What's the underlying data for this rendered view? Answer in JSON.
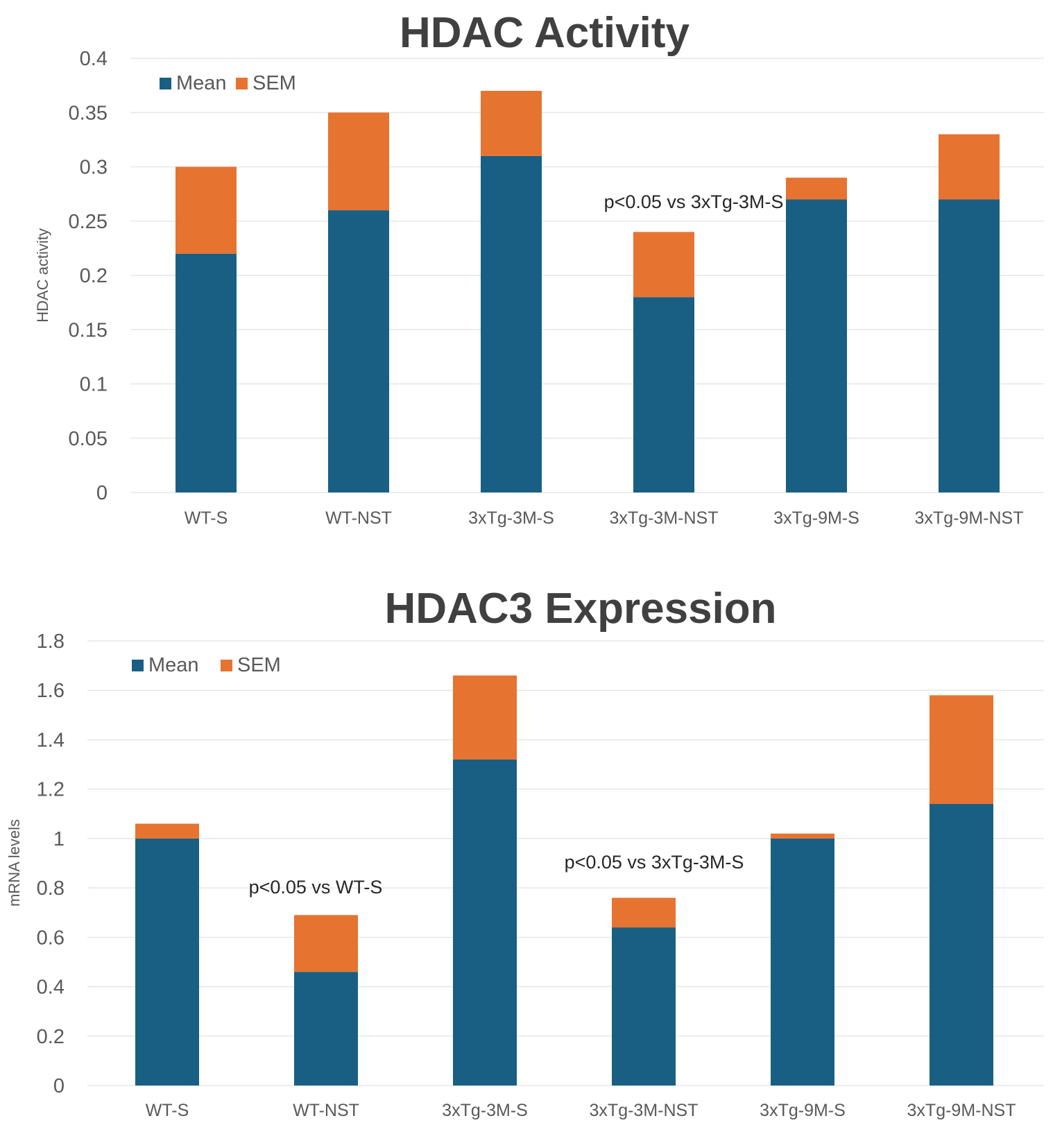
{
  "chart_data": [
    {
      "type": "bar",
      "stacked": true,
      "title": "HDAC Activity",
      "xlabel": "",
      "ylabel": "HDAC activity",
      "ylim": [
        0,
        0.4
      ],
      "yticks": [
        "0",
        "0.05",
        "0.1",
        "0.15",
        "0.2",
        "0.25",
        "0.3",
        "0.35",
        "0.4"
      ],
      "grid": true,
      "legend_position": "top-left",
      "categories": [
        "WT-S",
        "WT-NST",
        "3xTg-3M-S",
        "3xTg-3M-NST",
        "3xTg-9M-S",
        "3xTg-9M-NST"
      ],
      "series": [
        {
          "name": "Mean",
          "color": "#185f83",
          "values": [
            0.22,
            0.26,
            0.31,
            0.18,
            0.27,
            0.27
          ]
        },
        {
          "name": "SEM",
          "color": "#e77331",
          "values": [
            0.08,
            0.09,
            0.06,
            0.06,
            0.02,
            0.06
          ]
        }
      ],
      "annotations": [
        {
          "text": "p<0.05 vs 3xTg-3M-S",
          "category": "3xTg-3M-NST"
        }
      ]
    },
    {
      "type": "bar",
      "stacked": true,
      "title": "HDAC3 Expression",
      "xlabel": "",
      "ylabel": "mRNA levels",
      "ylim": [
        0,
        1.8
      ],
      "yticks": [
        "0",
        "0.2",
        "0.4",
        "0.6",
        "0.8",
        "1",
        "1.2",
        "1.4",
        "1.6",
        "1.8"
      ],
      "grid": true,
      "legend_position": "top-left",
      "categories": [
        "WT-S",
        "WT-NST",
        "3xTg-3M-S",
        "3xTg-3M-NST",
        "3xTg-9M-S",
        "3xTg-9M-NST"
      ],
      "series": [
        {
          "name": "Mean",
          "color": "#185f83",
          "values": [
            1.0,
            0.46,
            1.32,
            0.64,
            1.0,
            1.14
          ]
        },
        {
          "name": "SEM",
          "color": "#e77331",
          "values": [
            0.06,
            0.23,
            0.34,
            0.12,
            0.02,
            0.44
          ]
        }
      ],
      "annotations": [
        {
          "text": "p<0.05 vs WT-S",
          "category": "WT-NST"
        },
        {
          "text": "p<0.05 vs 3xTg-3M-S",
          "category": "3xTg-3M-NST"
        }
      ]
    }
  ]
}
